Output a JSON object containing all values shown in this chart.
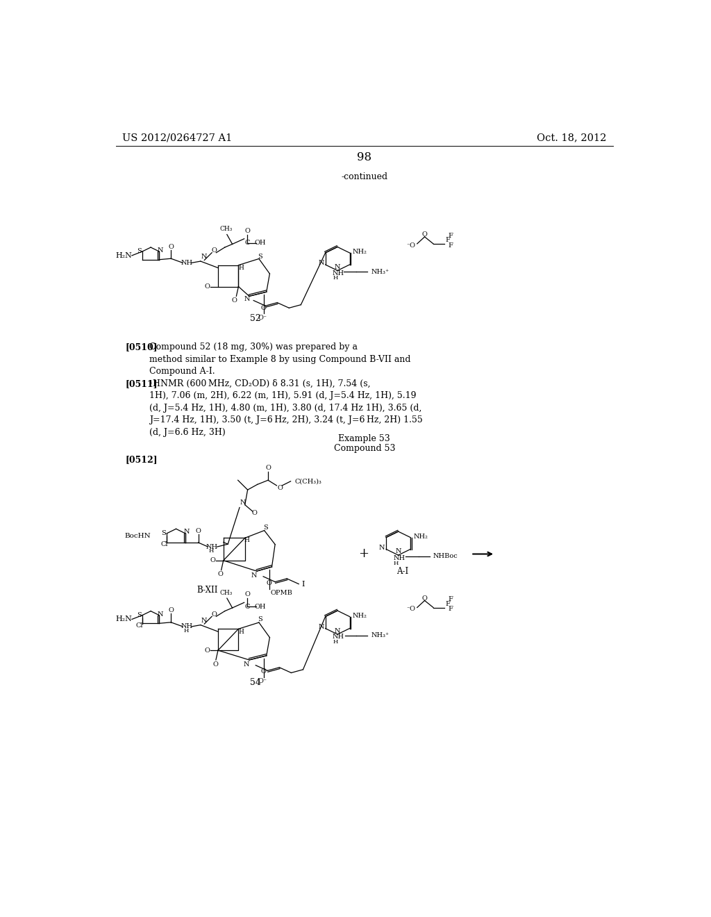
{
  "background_color": "#ffffff",
  "header_left": "US 2012/0264727 A1",
  "header_right": "Oct. 18, 2012",
  "page_number": "98",
  "continued_text": "-continued",
  "compound52_label": "52",
  "paragraph_0510": "[0510] Compound 52 (18 mg, 30%) was prepared by a\nmethod similar to Example 8 by using Compound B-VII and\nCompound A-I.",
  "paragraph_0511_bold": "[0511]",
  "paragraph_0511_text": "¹HNMR (600 MHz, CD₂OD) δ 8.31 (s, 1H), 7.54 (s,\n1H), 7.06 (m, 2H), 6.22 (m, 1H), 5.91 (d, J=5.4 Hz, 1H), 5.19\n(d, J=5.4 Hz, 1H), 4.80 (m, 1H), 3.80 (d, 17.4 Hz 1H), 3.65 (d,\nJ=17.4 Hz, 1H), 3.50 (t, J=6 Hz, 2H), 3.24 (t, J=6 Hz, 2H) 1.55\n(d, J=6.6 Hz, 3H)",
  "example53_line1": "Example 53",
  "example53_line2": "Compound 53",
  "paragraph_0512_label": "[0512]",
  "compound54_label": "54",
  "bxii_label": "B-XII",
  "ai_label": "A-I"
}
